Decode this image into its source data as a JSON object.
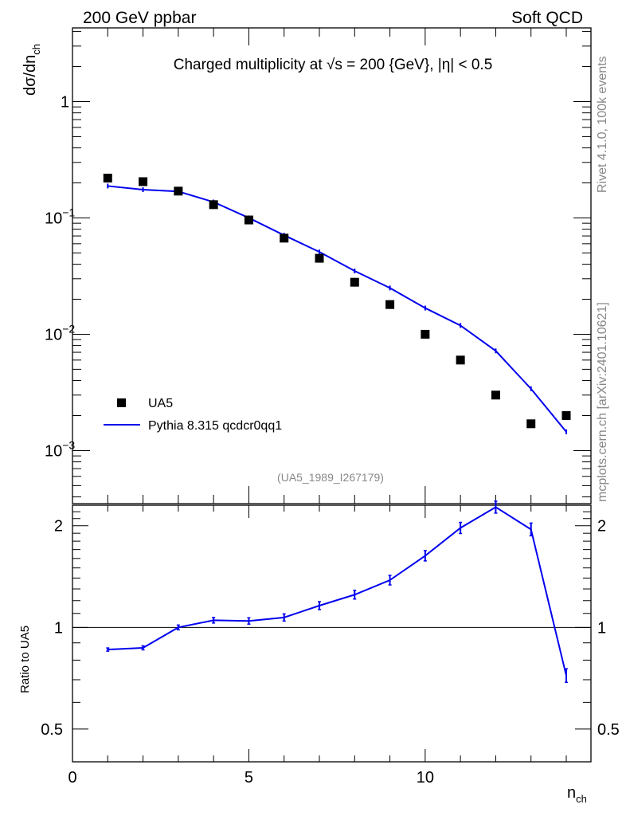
{
  "header": {
    "left": "200 GeV ppbar",
    "right": "Soft QCD"
  },
  "side_labels": {
    "version": "Rivet 4.1.0,  100k events",
    "url": "mcplots.cern.ch [arXiv:2401.10621]"
  },
  "chart_data": {
    "type": "line",
    "title": "Charged multiplicity at √s = 200 {GeV}, |η| < 0.5",
    "analysis_id": "(UA5_1989_I267179)",
    "xlabel": "n",
    "xlabel_sub": "ch",
    "ylabel": "dσ/dn",
    "ylabel_sub": "ch",
    "xlim": [
      0,
      14.7
    ],
    "ylim": [
      0.00035,
      4.3
    ],
    "yscale": "log",
    "x_ticks": [
      "0",
      "5",
      "10"
    ],
    "y_ticks": [
      {
        "base": "10",
        "exp": "−3",
        "value": 0.001
      },
      {
        "base": "10",
        "exp": "−2",
        "value": 0.01
      },
      {
        "base": "10",
        "exp": "−1",
        "value": 0.1
      },
      {
        "base": "1",
        "exp": "",
        "value": 1
      }
    ],
    "legend": {
      "placement": "lower-left",
      "entries": [
        "UA5",
        "Pythia 8.315 qcdcr0qq1"
      ]
    },
    "x": [
      1,
      2,
      3,
      4,
      5,
      6,
      7,
      8,
      9,
      10,
      11,
      12,
      13,
      14
    ],
    "series": [
      {
        "name": "UA5",
        "style": "markers",
        "color": "#000000",
        "values": [
          0.22,
          0.205,
          0.17,
          0.13,
          0.096,
          0.067,
          0.045,
          0.028,
          0.018,
          0.01,
          0.006,
          0.003,
          0.0017,
          0.002
        ]
      },
      {
        "name": "Pythia 8.315 qcdcr0qq1",
        "style": "line",
        "color": "#0000ee",
        "values": [
          0.188,
          0.175,
          0.169,
          0.137,
          0.1,
          0.071,
          0.051,
          0.035,
          0.025,
          0.0168,
          0.0119,
          0.0072,
          0.0034,
          0.00145
        ]
      }
    ],
    "ratio": {
      "ylabel": "Ratio to UA5",
      "ylim": [
        0.4,
        2.3
      ],
      "y_ticks": [
        "0.5",
        "1",
        "2"
      ],
      "y_tick_values": [
        0.5,
        1,
        2
      ],
      "reference": 1,
      "values": [
        0.86,
        0.87,
        1.0,
        1.05,
        1.045,
        1.07,
        1.16,
        1.25,
        1.38,
        1.63,
        1.97,
        2.27,
        1.95,
        0.72
      ]
    }
  }
}
